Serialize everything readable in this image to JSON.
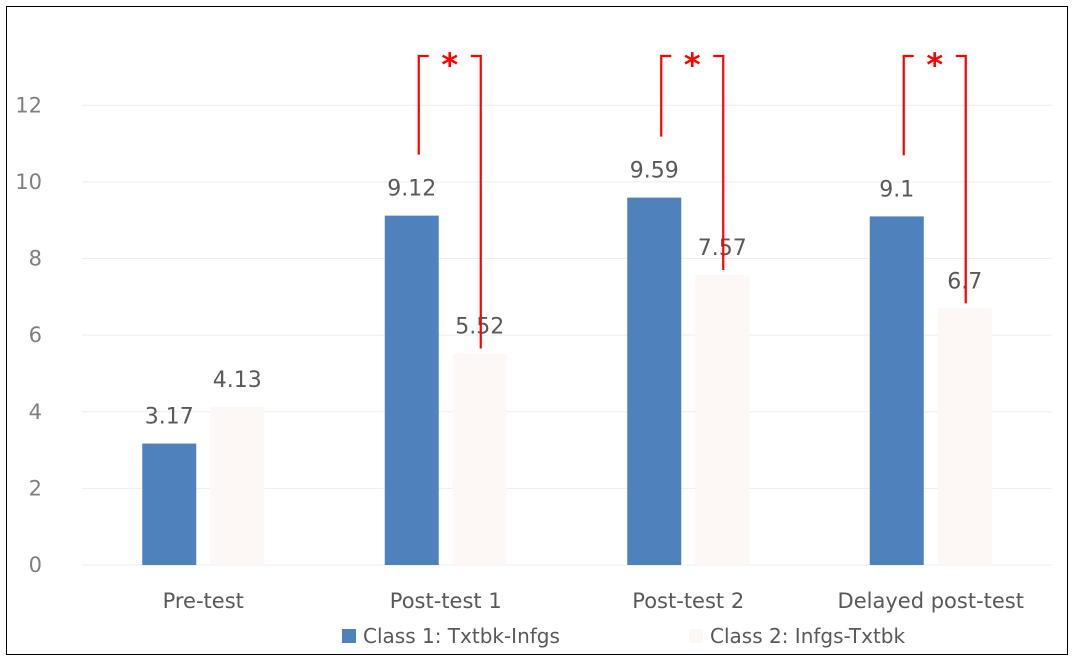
{
  "chart_data": {
    "type": "bar",
    "title": "",
    "xlabel": "",
    "ylabel": "",
    "categories": [
      "Pre-test",
      "Post-test 1",
      "Post-test 2",
      "Delayed post-test"
    ],
    "series": [
      {
        "name": "Class 1: Txtbk-Infgs",
        "color": "#4f81bd",
        "values": [
          3.17,
          9.12,
          9.59,
          9.1
        ]
      },
      {
        "name": "Class 2: Infgs-Txtbk",
        "color": "#fdf7f6",
        "values": [
          4.13,
          5.52,
          7.57,
          6.7
        ]
      }
    ],
    "data_labels": [
      [
        "3.17",
        "9.12",
        "9.59",
        "9.1"
      ],
      [
        "4.13",
        "5.52",
        "7.57",
        "6.7"
      ]
    ],
    "ylim": [
      0,
      13
    ],
    "yticks": [
      0,
      2,
      4,
      6,
      8,
      10,
      12
    ],
    "grid": true,
    "legend_position": "bottom",
    "significance": {
      "marker": "*",
      "color": "#ff0000",
      "categories": [
        "Post-test 1",
        "Post-test 2",
        "Delayed post-test"
      ]
    }
  }
}
